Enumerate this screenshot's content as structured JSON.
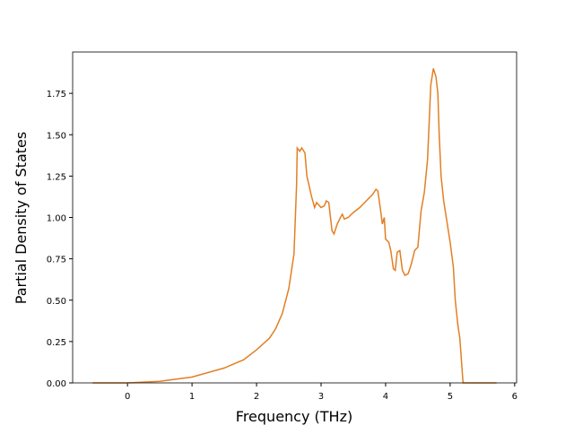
{
  "chart_data": {
    "type": "line",
    "xlabel": "Frequency (THz)",
    "ylabel": "Partial Density of States",
    "x": [
      -0.54,
      0,
      0.5,
      1,
      1.5,
      1.8,
      2.0,
      2.2,
      2.3,
      2.4,
      2.5,
      2.55,
      2.58,
      2.62,
      2.63,
      2.67,
      2.7,
      2.75,
      2.78,
      2.85,
      2.9,
      2.93,
      3.0,
      3.05,
      3.08,
      3.12,
      3.17,
      3.2,
      3.25,
      3.3,
      3.33,
      3.36,
      3.42,
      3.5,
      3.6,
      3.7,
      3.8,
      3.85,
      3.88,
      3.92,
      3.95,
      3.98,
      4.0,
      4.05,
      4.08,
      4.12,
      4.15,
      4.18,
      4.22,
      4.26,
      4.3,
      4.35,
      4.4,
      4.45,
      4.5,
      4.55,
      4.6,
      4.65,
      4.7,
      4.74,
      4.78,
      4.81,
      4.83,
      4.86,
      4.9,
      5.0,
      5.05,
      5.08,
      5.12,
      5.15,
      5.2,
      5.5,
      5.72
    ],
    "series": [
      {
        "color": "#e37f23",
        "values": [
          0,
          0,
          0.01,
          0.035,
          0.09,
          0.14,
          0.2,
          0.27,
          0.33,
          0.42,
          0.57,
          0.7,
          0.78,
          1.2,
          1.42,
          1.4,
          1.42,
          1.39,
          1.25,
          1.13,
          1.06,
          1.09,
          1.06,
          1.07,
          1.1,
          1.09,
          0.92,
          0.9,
          0.96,
          1.0,
          1.02,
          0.99,
          1.0,
          1.03,
          1.06,
          1.1,
          1.14,
          1.17,
          1.16,
          1.05,
          0.96,
          1.0,
          0.87,
          0.85,
          0.8,
          0.69,
          0.68,
          0.79,
          0.8,
          0.68,
          0.65,
          0.66,
          0.72,
          0.8,
          0.82,
          1.04,
          1.15,
          1.35,
          1.8,
          1.9,
          1.85,
          1.75,
          1.5,
          1.25,
          1.1,
          0.85,
          0.7,
          0.5,
          0.35,
          0.27,
          0.0,
          0,
          0
        ]
      }
    ],
    "xlim": [
      -0.85,
      6.03
    ],
    "ylim": [
      0,
      2.0
    ],
    "xticks": [
      0,
      1,
      2,
      3,
      4,
      5,
      6
    ],
    "yticks": [
      {
        "value": 0,
        "label": "0.00"
      },
      {
        "value": 0.25,
        "label": "0.25"
      },
      {
        "value": 0.5,
        "label": "0.50"
      },
      {
        "value": 0.75,
        "label": "0.75"
      },
      {
        "value": 1.0,
        "label": "1.00"
      },
      {
        "value": 1.25,
        "label": "1.25"
      },
      {
        "value": 1.5,
        "label": "1.50"
      },
      {
        "value": 1.75,
        "label": "1.75"
      }
    ]
  }
}
